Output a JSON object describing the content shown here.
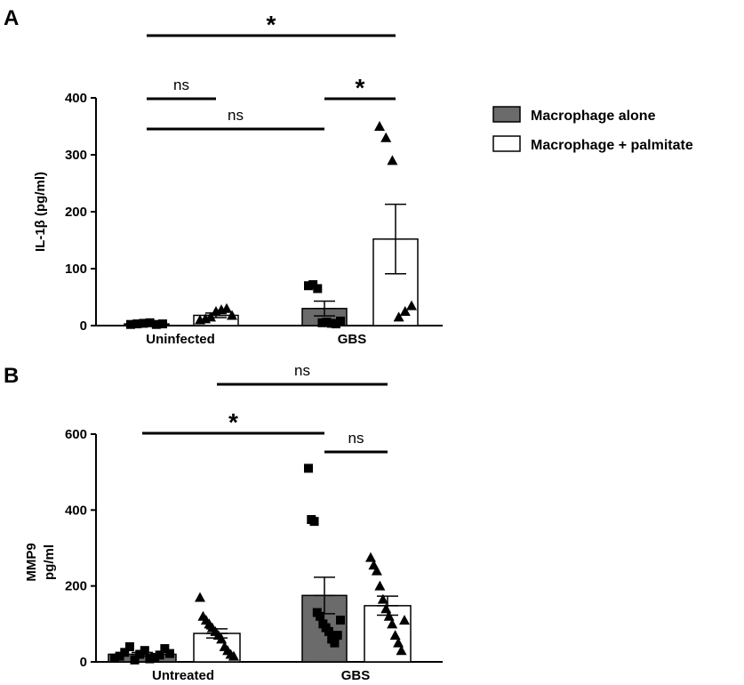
{
  "colors": {
    "filled_bar": "#6b6b6b",
    "open_bar": "#ffffff",
    "stroke": "#000000"
  },
  "legend": {
    "items": [
      {
        "label": "Macrophage alone",
        "color": "#6b6b6b"
      },
      {
        "label": "Macrophage + palmitate",
        "color": "#ffffff"
      }
    ]
  },
  "chart_data": [
    {
      "panel": "A",
      "type": "bar",
      "ylabel": "IL-1β (pg/ml)",
      "ylim": [
        0,
        400
      ],
      "yticks": [
        "0",
        "100",
        "200",
        "300",
        "400"
      ],
      "categories": [
        "Uninfected",
        "GBS"
      ],
      "series": [
        {
          "name": "Macrophage alone",
          "values": [
            3,
            30
          ],
          "sem": [
            1,
            13
          ],
          "points": [
            [
              2,
              3,
              4,
              5,
              2,
              3
            ],
            [
              70,
              72,
              65,
              5,
              6,
              4,
              3,
              8
            ]
          ]
        },
        {
          "name": "Macrophage + palmitate",
          "values": [
            18,
            152
          ],
          "sem": [
            4,
            61
          ],
          "points": [
            [
              10,
              12,
              15,
              25,
              28,
              30,
              18
            ],
            [
              350,
              330,
              290,
              15,
              25,
              35
            ]
          ]
        }
      ],
      "annotations": [
        {
          "text": "*",
          "from": 0,
          "to": 3,
          "level": 0
        },
        {
          "text": "ns",
          "from": 0,
          "to": 1,
          "level": 1
        },
        {
          "text": "*",
          "from": 2,
          "to": 3,
          "level": 1
        },
        {
          "text": "ns",
          "from": 0,
          "to": 2,
          "level": 2
        }
      ]
    },
    {
      "panel": "B",
      "type": "bar",
      "ylabel": "MMP9 pg/ml",
      "ylim": [
        0,
        600
      ],
      "yticks": [
        "0",
        "200",
        "400",
        "600"
      ],
      "categories": [
        "Untreated",
        "GBS"
      ],
      "series": [
        {
          "name": "Macrophage alone",
          "values": [
            20,
            175
          ],
          "sem": [
            5,
            48
          ],
          "points": [
            [
              10,
              15,
              25,
              40,
              5,
              20,
              30,
              8,
              12,
              18,
              35,
              22
            ],
            [
              510,
              375,
              370,
              130,
              120,
              100,
              90,
              80,
              60,
              50,
              70,
              110
            ]
          ]
        },
        {
          "name": "Macrophage + palmitate",
          "values": [
            75,
            148
          ],
          "sem": [
            12,
            25
          ],
          "points": [
            [
              170,
              120,
              110,
              100,
              90,
              80,
              70,
              60,
              40,
              30,
              20,
              15
            ],
            [
              275,
              255,
              240,
              200,
              165,
              140,
              120,
              100,
              70,
              50,
              30,
              110
            ]
          ]
        }
      ],
      "annotations": [
        {
          "text": "ns",
          "from": 1,
          "to": 3,
          "level": 0
        },
        {
          "text": "*",
          "from": 0,
          "to": 2,
          "level": 1
        },
        {
          "text": "ns",
          "from": 2,
          "to": 3,
          "level": 2
        }
      ]
    }
  ]
}
